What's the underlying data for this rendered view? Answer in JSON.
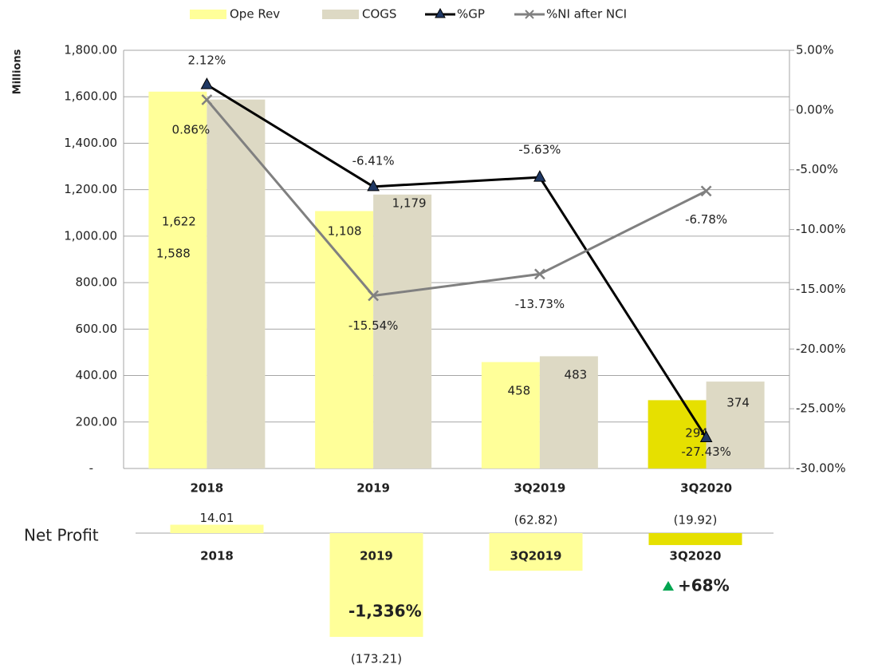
{
  "chart_data": [
    {
      "type": "bar",
      "ylabel": "Millions",
      "categories": [
        "2018",
        "2019",
        "3Q2019",
        "3Q2020"
      ],
      "series": [
        {
          "name": "Ope Rev",
          "type": "bar",
          "color": "#ffff99",
          "colors": [
            "#ffff99",
            "#ffff99",
            "#ffff99",
            "#e6e000"
          ],
          "values": [
            1622,
            1108,
            458,
            294
          ],
          "value_labels": [
            "1,622",
            "1,108",
            "458",
            "294"
          ]
        },
        {
          "name": "COGS",
          "type": "bar",
          "color": "#ddd9c4",
          "values": [
            1588,
            1179,
            483,
            374
          ],
          "value_labels": [
            "1,588",
            "1,179",
            "483",
            "374"
          ]
        },
        {
          "name": "%GP",
          "type": "line",
          "axis": "y2",
          "color": "#000000",
          "marker": "triangle",
          "marker_color": "#1f3864",
          "values": [
            2.12,
            -6.41,
            -5.63,
            -27.43
          ],
          "value_labels": [
            "2.12%",
            "-6.41%",
            "-5.63%",
            "-27.43%"
          ]
        },
        {
          "name": "%NI after NCI",
          "type": "line",
          "axis": "y2",
          "color": "#808080",
          "marker": "x",
          "marker_color": "#808080",
          "values": [
            0.86,
            -15.54,
            -13.73,
            -6.78
          ],
          "value_labels": [
            "0.86%",
            "-15.54%",
            "-13.73%",
            "-6.78%"
          ]
        }
      ],
      "ylim": [
        0,
        1800
      ],
      "yticks": [
        {
          "value": 0,
          "label": "-"
        },
        {
          "value": 200,
          "label": "200.00"
        },
        {
          "value": 400,
          "label": "400.00"
        },
        {
          "value": 600,
          "label": "600.00"
        },
        {
          "value": 800,
          "label": "800.00"
        },
        {
          "value": 1000,
          "label": "1,000.00"
        },
        {
          "value": 1200,
          "label": "1,200.00"
        },
        {
          "value": 1400,
          "label": "1,400.00"
        },
        {
          "value": 1600,
          "label": "1,600.00"
        },
        {
          "value": 1800,
          "label": "1,800.00"
        }
      ],
      "y2lim": [
        -30,
        5
      ],
      "y2ticks": [
        {
          "value": -30,
          "label": "-30.00%"
        },
        {
          "value": -25,
          "label": "-25.00%"
        },
        {
          "value": -20,
          "label": "-20.00%"
        },
        {
          "value": -15,
          "label": "-15.00%"
        },
        {
          "value": -10,
          "label": "-10.00%"
        },
        {
          "value": -5,
          "label": "-5.00%"
        },
        {
          "value": 0,
          "label": "0.00%"
        },
        {
          "value": 5,
          "label": "5.00%"
        }
      ],
      "grid": true,
      "legend": "top"
    },
    {
      "type": "bar",
      "ylabel": "Net Profit",
      "categories": [
        "2018",
        "2019",
        "3Q2019",
        "3Q2020"
      ],
      "values": [
        14.01,
        -173.21,
        -62.82,
        -19.92
      ],
      "value_labels": [
        "14.01",
        "(173.21)",
        "(62.82)",
        "(19.92)"
      ],
      "color": "#ffff99",
      "colors": [
        "#ffff99",
        "#ffff99",
        "#ffff99",
        "#e6e000"
      ],
      "annotations": [
        {
          "text": "-1,336%",
          "color": "#ff0000"
        },
        {
          "text": "+68%",
          "color": "#00a550"
        }
      ]
    }
  ]
}
